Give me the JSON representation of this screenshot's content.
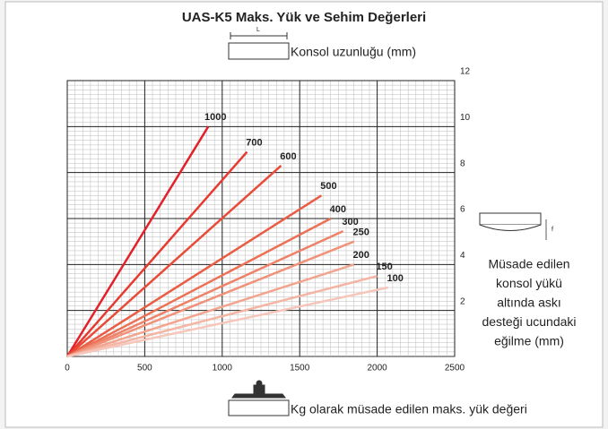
{
  "chart_data": {
    "type": "line",
    "title": "UAS-K5 Maks. Yük ve Sehim Değerleri",
    "top_label": "Konsol uzunluğu (mm)",
    "top_icon_label": "L",
    "right_label": [
      "Müsade edilen",
      "konsol yükü",
      "altında askı",
      "desteği ucundaki",
      "eğilme (mm)"
    ],
    "right_icon_label": "f",
    "x_label": "Kg olarak müsade edilen maks. yük değeri",
    "xlim": [
      0,
      2500
    ],
    "xticks": [
      0,
      500,
      1000,
      1500,
      2000,
      2500
    ],
    "ylim": [
      0,
      12
    ],
    "yticks": [
      2,
      4,
      6,
      8,
      10,
      12
    ],
    "grid": true,
    "series": [
      {
        "name": "1000",
        "color": "#e3212a",
        "x": [
          0,
          910
        ],
        "values": [
          0,
          10
        ]
      },
      {
        "name": "700",
        "color": "#e63a30",
        "x": [
          0,
          1160
        ],
        "values": [
          0,
          8.9
        ]
      },
      {
        "name": "600",
        "color": "#e84b38",
        "x": [
          0,
          1380
        ],
        "values": [
          0,
          8.3
        ]
      },
      {
        "name": "500",
        "color": "#ea5d45",
        "x": [
          0,
          1640
        ],
        "values": [
          0,
          7.0
        ]
      },
      {
        "name": "400",
        "color": "#ec7055",
        "x": [
          0,
          1700
        ],
        "values": [
          0,
          6.0
        ]
      },
      {
        "name": "300",
        "color": "#ee8268",
        "x": [
          0,
          1780
        ],
        "values": [
          0,
          5.45
        ]
      },
      {
        "name": "250",
        "color": "#f0937a",
        "x": [
          0,
          1850
        ],
        "values": [
          0,
          5.0
        ]
      },
      {
        "name": "200",
        "color": "#f2a48f",
        "x": [
          0,
          1850
        ],
        "values": [
          0,
          4.0
        ]
      },
      {
        "name": "150",
        "color": "#f4b5a5",
        "x": [
          0,
          2000
        ],
        "values": [
          0,
          3.5
        ]
      },
      {
        "name": "100",
        "color": "#f6c6ba",
        "x": [
          0,
          2070
        ],
        "values": [
          0,
          3.0
        ]
      }
    ]
  }
}
